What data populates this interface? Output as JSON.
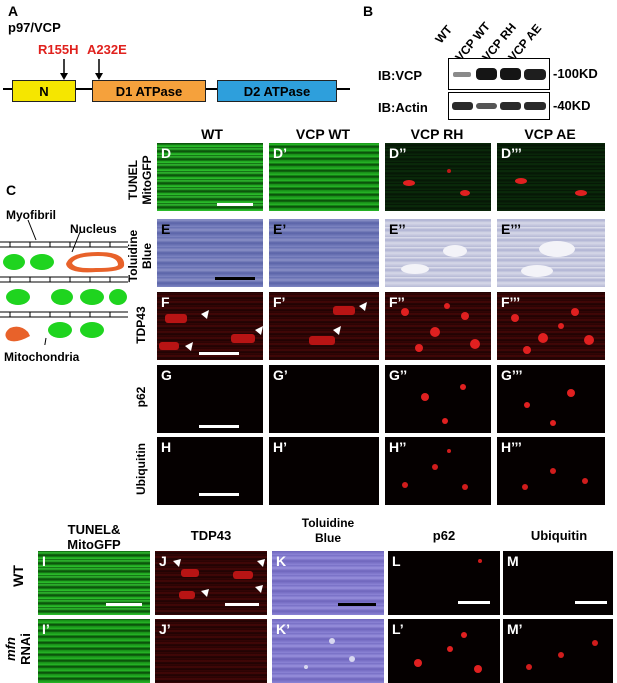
{
  "panelA": {
    "label": "A",
    "protein": "p97/VCP",
    "mut1": "R155H",
    "mut2": "A232E",
    "domains": [
      "N",
      "D1 ATPase",
      "D2 ATPase"
    ],
    "colors": {
      "N": "#f5e600",
      "D1": "#f5a13c",
      "D2": "#2e9fdc",
      "mut": "#e0211d"
    }
  },
  "panelB": {
    "label": "B",
    "lanes": [
      "WT",
      "VCP WT",
      "VCP RH",
      "VCP AE"
    ],
    "blot1_label": "IB:VCP",
    "blot2_label": "IB:Actin",
    "mw1": "-100KD",
    "mw2": "-40KD"
  },
  "panelC": {
    "label": "C",
    "myofibril": "Myofibril",
    "nucleus": "Nucleus",
    "mitochondria": "Mitochondria"
  },
  "topgrid": {
    "columns": [
      "WT",
      "VCP WT",
      "VCP RH",
      "VCP AE"
    ],
    "rows": [
      {
        "label": "TUNEL\nMitoGFP",
        "label1": "TUNEL",
        "label2": "MitoGFP",
        "letters": [
          "D",
          "D’",
          "D’’",
          "D’’’"
        ]
      },
      {
        "label1": "Toluidine",
        "label2": "Blue",
        "letters": [
          "E",
          "E’",
          "E’’",
          "E’’’"
        ]
      },
      {
        "label1": "TDP43",
        "letters": [
          "F",
          "F’",
          "F’’",
          "F’’’"
        ]
      },
      {
        "label1": "p62",
        "letters": [
          "G",
          "G’",
          "G’’",
          "G’’’"
        ]
      },
      {
        "label1": "Ubiquitin",
        "letters": [
          "H",
          "H’",
          "H’’",
          "H’’’"
        ]
      }
    ]
  },
  "bottomgrid": {
    "headers": {
      "I": [
        "TUNEL&",
        "MitoGFP"
      ],
      "J": [
        "TDP43"
      ],
      "K": [
        "Toluidine",
        "Blue"
      ],
      "L": [
        "p62"
      ],
      "M": [
        "Ubiquitin"
      ]
    },
    "row1": "WT",
    "row2_gene": "mfn",
    "row2_rest": "RNAi",
    "letters_top": [
      "I",
      "J",
      "K",
      "L",
      "M"
    ],
    "letters_bottom": [
      "I’",
      "J’",
      "K’",
      "L’",
      "M’"
    ]
  }
}
